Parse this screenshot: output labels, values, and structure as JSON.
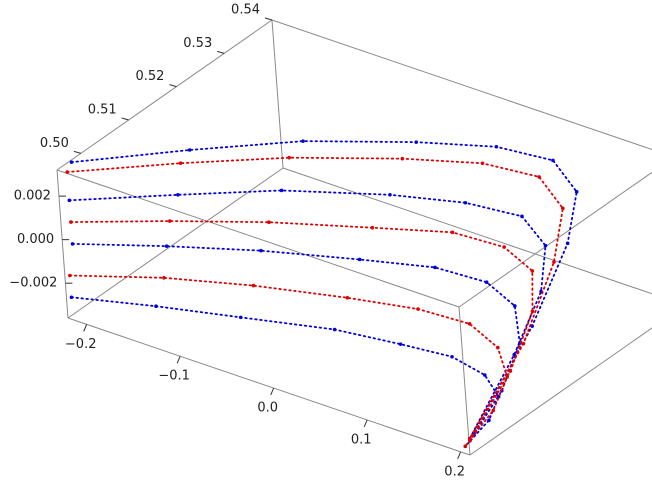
{
  "chart_data": {
    "type": "scatter3d",
    "xlim": [
      -0.22,
      0.21
    ],
    "ylim": [
      0.495,
      0.54
    ],
    "zlim": [
      -0.0036,
      0.0032
    ],
    "xticks": [
      {
        "value": -0.2,
        "label": "−0.2"
      },
      {
        "value": -0.1,
        "label": "−0.1"
      },
      {
        "value": 0,
        "label": "0.0"
      },
      0.1,
      0.2
    ],
    "yticks": [
      {
        "value": 0.5,
        "label": "0.50"
      },
      0.51,
      0.52,
      0.53,
      0.54
    ],
    "zticks": [
      {
        "value": -0.002,
        "label": "−0.002"
      },
      {
        "value": 0,
        "label": "0.000"
      },
      0.002
    ],
    "series": [
      {
        "color": "#0000dd",
        "x": [
          -0.22,
          -0.15,
          -0.08,
          0,
          0.06,
          0.11,
          0.15,
          0.18,
          0.195,
          0.2
        ],
        "y": [
          0.498,
          0.509,
          0.519,
          0.527,
          0.532,
          0.534,
          0.531,
          0.523,
          0.512,
          0.498
        ],
        "z": [
          0.0031,
          0.003,
          0.0029,
          0.0028,
          0.0027,
          0.0025,
          0.0021,
          0.0014,
          -0.0005,
          -0.0032
        ]
      },
      {
        "color": "#0000dd",
        "x": [
          -0.22,
          -0.15,
          -0.08,
          0,
          0.06,
          0.11,
          0.15,
          0.18,
          0.195,
          0.2
        ],
        "y": [
          0.497,
          0.506,
          0.514,
          0.521,
          0.525,
          0.527,
          0.524,
          0.517,
          0.508,
          0.497
        ],
        "z": [
          0.0015,
          0.0014,
          0.0014,
          0.0013,
          0.0012,
          0.001,
          0.0007,
          0.0001,
          -0.0012,
          -0.0033
        ]
      },
      {
        "color": "#0000dd",
        "x": [
          -0.22,
          -0.15,
          -0.08,
          0,
          0.06,
          0.11,
          0.15,
          0.18,
          0.195,
          0.2
        ],
        "y": [
          0.497,
          0.503,
          0.509,
          0.514,
          0.518,
          0.519,
          0.517,
          0.512,
          0.505,
          0.497
        ],
        "z": [
          -0.0005,
          -0.0005,
          -0.0006,
          -0.0006,
          -0.0007,
          -0.0008,
          -0.001,
          -0.0015,
          -0.0024,
          -0.0034
        ]
      },
      {
        "color": "#0000dd",
        "x": [
          -0.22,
          -0.15,
          -0.08,
          0,
          0.06,
          0.11,
          0.15,
          0.18,
          0.195,
          0.2
        ],
        "y": [
          0.496,
          0.5,
          0.504,
          0.508,
          0.51,
          0.511,
          0.51,
          0.507,
          0.502,
          0.496
        ],
        "z": [
          -0.0028,
          -0.0028,
          -0.0029,
          -0.0029,
          -0.003,
          -0.003,
          -0.0031,
          -0.0032,
          -0.0033,
          -0.0035
        ]
      },
      {
        "color": "#e00000",
        "x": [
          -0.22,
          -0.15,
          -0.08,
          0,
          0.06,
          0.11,
          0.15,
          0.18,
          0.195,
          0.2
        ],
        "y": [
          0.497,
          0.507,
          0.516,
          0.524,
          0.529,
          0.531,
          0.528,
          0.52,
          0.51,
          0.497
        ],
        "z": [
          0.0028,
          0.0027,
          0.0026,
          0.0025,
          0.0024,
          0.0022,
          0.0018,
          0.001,
          -0.001,
          -0.0033
        ]
      },
      {
        "color": "#e00000",
        "x": [
          -0.22,
          -0.15,
          -0.08,
          0,
          0.06,
          0.11,
          0.15,
          0.18,
          0.195,
          0.2
        ],
        "y": [
          0.497,
          0.504,
          0.511,
          0.517,
          0.522,
          0.523,
          0.521,
          0.515,
          0.507,
          0.497
        ],
        "z": [
          0.0005,
          0.0005,
          0.0004,
          0.0004,
          0.0003,
          0.0002,
          0,
          -0.0005,
          -0.0018,
          -0.0034
        ]
      },
      {
        "color": "#e00000",
        "x": [
          -0.22,
          -0.15,
          -0.08,
          0,
          0.06,
          0.11,
          0.15,
          0.18,
          0.195,
          0.2
        ],
        "y": [
          0.496,
          0.502,
          0.507,
          0.511,
          0.514,
          0.515,
          0.513,
          0.509,
          0.503,
          0.496
        ],
        "z": [
          -0.0018,
          -0.0018,
          -0.0019,
          -0.0019,
          -0.002,
          -0.0021,
          -0.0023,
          -0.0026,
          -0.003,
          -0.0035
        ]
      }
    ]
  }
}
